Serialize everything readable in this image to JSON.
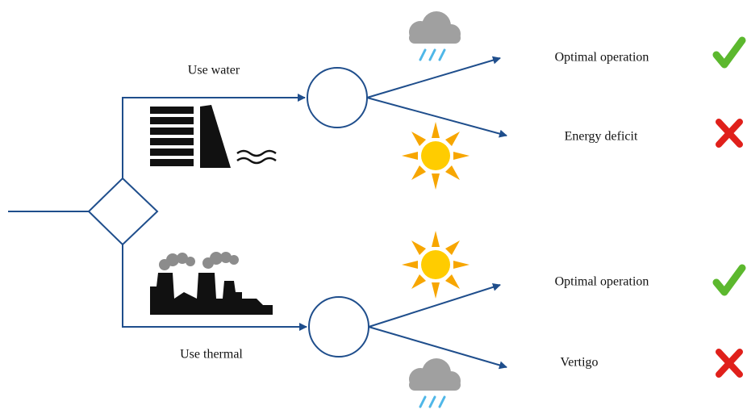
{
  "decision": {
    "water": {
      "label": "Use water",
      "outcomes": [
        "Optimal operation",
        "Energy deficit"
      ]
    },
    "thermal": {
      "label": "Use thermal",
      "outcomes": [
        "Optimal operation",
        "Vertigo"
      ]
    }
  }
}
